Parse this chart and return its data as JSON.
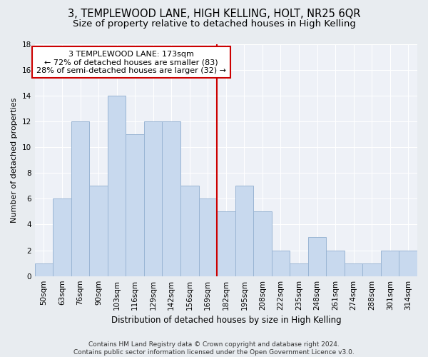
{
  "title": "3, TEMPLEWOOD LANE, HIGH KELLING, HOLT, NR25 6QR",
  "subtitle": "Size of property relative to detached houses in High Kelling",
  "xlabel": "Distribution of detached houses by size in High Kelling",
  "ylabel": "Number of detached properties",
  "bar_labels": [
    "50sqm",
    "63sqm",
    "76sqm",
    "90sqm",
    "103sqm",
    "116sqm",
    "129sqm",
    "142sqm",
    "156sqm",
    "169sqm",
    "182sqm",
    "195sqm",
    "208sqm",
    "222sqm",
    "235sqm",
    "248sqm",
    "261sqm",
    "274sqm",
    "288sqm",
    "301sqm",
    "314sqm"
  ],
  "bar_values": [
    1,
    6,
    12,
    7,
    14,
    11,
    12,
    12,
    7,
    6,
    5,
    7,
    5,
    2,
    1,
    3,
    2,
    1,
    1,
    2,
    2
  ],
  "bar_color": "#c8d9ee",
  "bar_edge_color": "#9ab5d4",
  "vline_color": "#cc0000",
  "annotation_text": "3 TEMPLEWOOD LANE: 173sqm\n← 72% of detached houses are smaller (83)\n28% of semi-detached houses are larger (32) →",
  "annotation_box_color": "#ffffff",
  "annotation_box_edge": "#cc0000",
  "ylim": [
    0,
    18
  ],
  "yticks": [
    0,
    2,
    4,
    6,
    8,
    10,
    12,
    14,
    16,
    18
  ],
  "fig_bg_color": "#e8ecf0",
  "plot_bg_color": "#eef1f7",
  "footer": "Contains HM Land Registry data © Crown copyright and database right 2024.\nContains public sector information licensed under the Open Government Licence v3.0.",
  "title_fontsize": 10.5,
  "subtitle_fontsize": 9.5,
  "xlabel_fontsize": 8.5,
  "ylabel_fontsize": 8,
  "tick_fontsize": 7.5,
  "annotation_fontsize": 8,
  "footer_fontsize": 6.5
}
